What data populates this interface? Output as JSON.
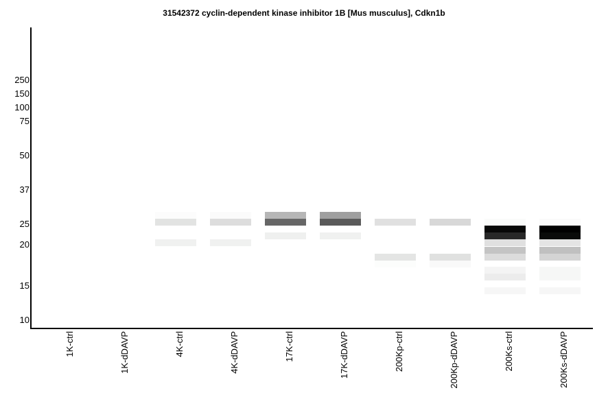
{
  "chart_data": {
    "type": "blot",
    "title": "31542372 cyclin-dependent kinase inhibitor 1B [Mus musculus], Cdkn1b",
    "ylabel": "",
    "y_ticks": [
      250,
      150,
      100,
      75,
      50,
      37,
      25,
      20,
      15,
      10
    ],
    "lanes": [
      {
        "label": "1K-ctrl",
        "bands": []
      },
      {
        "label": "1K-dDAVP",
        "bands": []
      },
      {
        "label": "4K-ctrl",
        "bands": [
          {
            "kda": 27.5,
            "color": "#fcfcfc"
          },
          {
            "kda": 25.4,
            "color": "#e2e3e2"
          },
          {
            "kda": 20.3,
            "color": "#f0f1f0"
          }
        ]
      },
      {
        "label": "4K-dDAVP",
        "bands": [
          {
            "kda": 27.5,
            "color": "#fbfbfb"
          },
          {
            "kda": 25.4,
            "color": "#dddddd"
          },
          {
            "kda": 20.3,
            "color": "#f0f1f0"
          }
        ]
      },
      {
        "label": "17K-ctrl",
        "bands": [
          {
            "kda": 27.5,
            "color": "#b6b6b6"
          },
          {
            "kda": 25.4,
            "color": "#666666"
          },
          {
            "kda": 21.9,
            "color": "#eff0ef"
          }
        ]
      },
      {
        "label": "17K-dDAVP",
        "bands": [
          {
            "kda": 27.5,
            "color": "#9f9f9f"
          },
          {
            "kda": 25.4,
            "color": "#5a5a5a"
          },
          {
            "kda": 21.9,
            "color": "#f0f1f0"
          }
        ]
      },
      {
        "label": "200Kp-ctrl",
        "bands": [
          {
            "kda": 25.4,
            "color": "#e0e0e0"
          },
          {
            "kda": 18.3,
            "color": "#e4e5e4"
          },
          {
            "kda": 17.4,
            "color": "#fcfdfc"
          }
        ]
      },
      {
        "label": "200Kp-dDAVP",
        "bands": [
          {
            "kda": 25.4,
            "color": "#d8d8d8"
          },
          {
            "kda": 18.3,
            "color": "#e0e1e0"
          },
          {
            "kda": 17.4,
            "color": "#f9f9f9"
          }
        ]
      },
      {
        "label": "200Ks-ctrl",
        "bands": [
          {
            "kda": 25.4,
            "color": "#fafbfa"
          },
          {
            "kda": 23.6,
            "color": "#080808"
          },
          {
            "kda": 21.9,
            "color": "#282828"
          },
          {
            "kda": 20.3,
            "color": "#e0e0e0"
          },
          {
            "kda": 19.2,
            "color": "#c4c4c4"
          },
          {
            "kda": 18.3,
            "color": "#dcdcdc"
          },
          {
            "kda": 16.7,
            "color": "#f4f4f4"
          },
          {
            "kda": 15.9,
            "color": "#ececec"
          },
          {
            "kda": 14.1,
            "color": "#f6f6f6"
          }
        ]
      },
      {
        "label": "200Ks-dDAVP",
        "bands": [
          {
            "kda": 25.4,
            "color": "#fafafa"
          },
          {
            "kda": 23.6,
            "color": "#000000"
          },
          {
            "kda": 21.9,
            "color": "#0a0b0a"
          },
          {
            "kda": 20.3,
            "color": "#e4e4e4"
          },
          {
            "kda": 19.2,
            "color": "#c0c0c0"
          },
          {
            "kda": 18.3,
            "color": "#d4d4d4"
          },
          {
            "kda": 16.7,
            "color": "#f6f7f6"
          },
          {
            "kda": 15.9,
            "color": "#f6f7f6"
          },
          {
            "kda": 14.1,
            "color": "#f6f6f6"
          }
        ]
      }
    ]
  }
}
